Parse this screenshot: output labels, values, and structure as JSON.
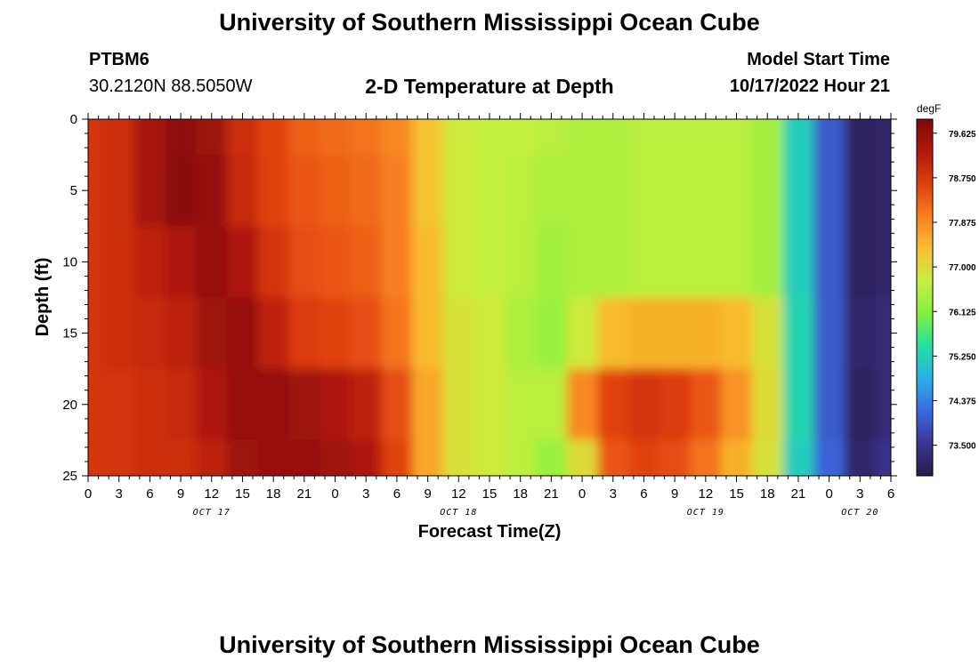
{
  "header": {
    "title": "University of Southern Mississippi Ocean Cube",
    "station": "PTBM6",
    "coords": "30.2120N  88.5050W",
    "subtitle": "2-D Temperature at Depth",
    "model_start_label": "Model Start Time",
    "model_start_value": "10/17/2022 Hour 21"
  },
  "footer": {
    "title": "University of Southern Mississippi Ocean Cube"
  },
  "colors": {
    "scale": [
      "#2a1a4a",
      "#3a3590",
      "#3a6ae0",
      "#2ab0e8",
      "#22e0a0",
      "#7ff040",
      "#c8f040",
      "#f8c030",
      "#f88020",
      "#e04010",
      "#b01808",
      "#800808"
    ]
  },
  "chart_data": {
    "type": "heatmap",
    "title": "2-D Temperature at Depth",
    "xlabel": "Forecast Time(Z)",
    "ylabel": "Depth (ft)",
    "x_hours_range": [
      0,
      78
    ],
    "ylim": [
      0,
      25
    ],
    "y_inverted": true,
    "x_ticks": [
      "0",
      "3",
      "6",
      "9",
      "12",
      "15",
      "18",
      "21",
      "0",
      "3",
      "6",
      "9",
      "12",
      "15",
      "18",
      "21",
      "0",
      "3",
      "6",
      "9",
      "12",
      "15",
      "18",
      "21",
      "0",
      "3",
      "6"
    ],
    "y_ticks": [
      "0",
      "5",
      "10",
      "15",
      "20",
      "25"
    ],
    "date_labels": [
      {
        "label": "OCT 17",
        "hour": 12
      },
      {
        "label": "OCT 18",
        "hour": 36
      },
      {
        "label": "OCT 19",
        "hour": 60
      },
      {
        "label": "OCT 20",
        "hour": 75
      }
    ],
    "colorbar": {
      "unit": "degF",
      "min": 72.9,
      "max": 79.9,
      "ticks": [
        "79.625",
        "78.750",
        "77.875",
        "77.000",
        "76.125",
        "75.250",
        "74.375",
        "73.500"
      ]
    },
    "depths_ft": [
      0,
      5,
      10,
      15,
      20,
      25
    ],
    "times_hours": [
      0,
      3,
      6,
      9,
      12,
      15,
      18,
      21,
      24,
      27,
      30,
      33,
      36,
      39,
      42,
      45,
      48,
      51,
      54,
      57,
      60,
      63,
      66,
      69,
      72,
      75,
      78
    ],
    "temperature_degF": [
      [
        78.8,
        78.9,
        79.4,
        79.7,
        79.5,
        78.9,
        78.6,
        78.3,
        78.2,
        78.1,
        77.9,
        77.3,
        76.8,
        76.7,
        76.7,
        76.6,
        76.5,
        76.5,
        76.6,
        76.6,
        76.6,
        76.6,
        76.4,
        75.2,
        74.0,
        73.1,
        73.2
      ],
      [
        78.8,
        78.9,
        79.4,
        79.8,
        79.6,
        79.0,
        78.6,
        78.4,
        78.3,
        78.2,
        78.0,
        77.3,
        76.8,
        76.7,
        76.6,
        76.5,
        76.5,
        76.5,
        76.6,
        76.6,
        76.6,
        76.6,
        76.4,
        75.2,
        74.0,
        73.1,
        73.2
      ],
      [
        78.8,
        78.9,
        79.1,
        79.3,
        79.6,
        79.3,
        78.8,
        78.5,
        78.4,
        78.3,
        78.0,
        77.4,
        76.8,
        76.7,
        76.6,
        76.4,
        76.5,
        76.5,
        76.6,
        76.6,
        76.6,
        76.6,
        76.4,
        75.2,
        74.0,
        73.1,
        73.2
      ],
      [
        78.8,
        78.9,
        79.0,
        79.1,
        79.5,
        79.6,
        79.1,
        78.7,
        78.6,
        78.5,
        78.1,
        77.4,
        76.9,
        76.8,
        76.5,
        76.3,
        76.8,
        77.4,
        77.5,
        77.5,
        77.5,
        77.4,
        76.9,
        75.3,
        74.0,
        73.2,
        73.3
      ],
      [
        78.8,
        78.8,
        78.9,
        79.0,
        79.3,
        79.6,
        79.6,
        79.5,
        79.3,
        79.1,
        78.5,
        77.6,
        76.9,
        76.8,
        76.6,
        76.6,
        77.9,
        78.6,
        78.8,
        78.7,
        78.4,
        77.8,
        77.0,
        75.3,
        74.0,
        73.1,
        73.3
      ],
      [
        78.8,
        78.8,
        78.9,
        78.9,
        79.1,
        79.5,
        79.6,
        79.6,
        79.5,
        79.3,
        78.6,
        77.6,
        76.9,
        76.8,
        76.6,
        76.3,
        77.0,
        78.4,
        78.6,
        78.5,
        78.1,
        77.5,
        76.9,
        75.2,
        74.1,
        73.2,
        73.5
      ]
    ]
  }
}
